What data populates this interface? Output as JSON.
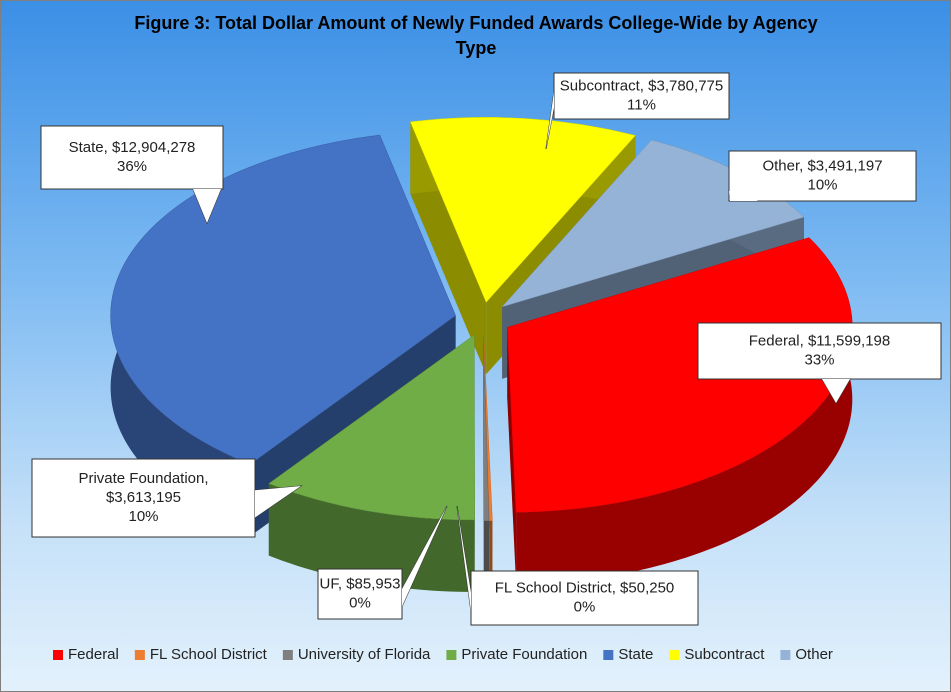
{
  "chart_data": {
    "type": "pie3d",
    "title": "Figure 3: Total Dollar Amount of Newly Funded Awards College-Wide by Agency Type",
    "categories": [
      "Federal",
      "FL School District",
      "University of Florida",
      "Private Foundation",
      "State",
      "Subcontract",
      "Other"
    ],
    "values": [
      11599198,
      50250,
      85953,
      3613195,
      12904278,
      3780775,
      3491197
    ],
    "value_labels": [
      [
        "Federal, $11,599,198",
        "33%"
      ],
      [
        "FL School District, $50,250",
        "0%"
      ],
      [
        "UF, $85,953",
        "0%"
      ],
      [
        "Private Foundation,",
        "$3,613,195",
        "10%"
      ],
      [
        "State, $12,904,278",
        "36%"
      ],
      [
        "Subcontract, $3,780,775",
        "11%"
      ],
      [
        "Other, $3,491,197",
        "10%"
      ]
    ],
    "colors": [
      "#ff0000",
      "#ed7d31",
      "#7f7f7f",
      "#70ad47",
      "#4472c4",
      "#ffff00",
      "#95b3d7"
    ],
    "legend": "bottom"
  }
}
